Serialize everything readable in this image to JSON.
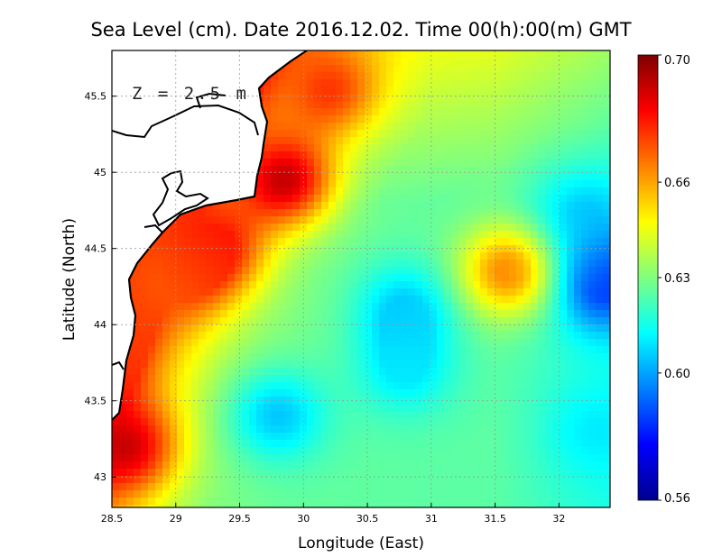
{
  "chart_data": {
    "type": "heatmap",
    "title": "Sea Level (cm). Date 2016.12.02. Time 00(h):00(m) GMT",
    "xlabel": "Longitude (East)",
    "ylabel": "Latitude (North)",
    "annotation": "Z = 2.5 m",
    "xlim": [
      28.5,
      32.4
    ],
    "ylim": [
      42.8,
      45.8
    ],
    "x_ticks": [
      "28.5",
      "29",
      "29.5",
      "30",
      "30.5",
      "31",
      "31.5",
      "32"
    ],
    "y_ticks": [
      "43",
      "43.5",
      "44",
      "44.5",
      "45",
      "45.5"
    ],
    "grid": true,
    "colorbar": {
      "min": 0.56,
      "max": 0.7,
      "ticks": [
        "0.56",
        "0.60",
        "0.63",
        "0.66",
        "0.70"
      ],
      "colormap": "jet",
      "placement": "right"
    },
    "field_features": [
      {
        "lon": 29.85,
        "lat": 44.95,
        "value": 0.69
      },
      {
        "lon": 29.3,
        "lat": 44.5,
        "value": 0.68
      },
      {
        "lon": 28.6,
        "lat": 43.2,
        "value": 0.69
      },
      {
        "lon": 30.2,
        "lat": 45.55,
        "value": 0.675
      },
      {
        "lon": 29.0,
        "lat": 44.3,
        "value": 0.67
      },
      {
        "lon": 31.6,
        "lat": 44.35,
        "value": 0.665
      },
      {
        "lon": 32.35,
        "lat": 44.25,
        "value": 0.585
      },
      {
        "lon": 32.2,
        "lat": 44.7,
        "value": 0.605
      },
      {
        "lon": 30.8,
        "lat": 44.1,
        "value": 0.605
      },
      {
        "lon": 29.8,
        "lat": 43.4,
        "value": 0.605
      },
      {
        "lon": 30.8,
        "lat": 43.7,
        "value": 0.61
      },
      {
        "lon": 32.3,
        "lat": 43.3,
        "value": 0.61
      }
    ]
  }
}
